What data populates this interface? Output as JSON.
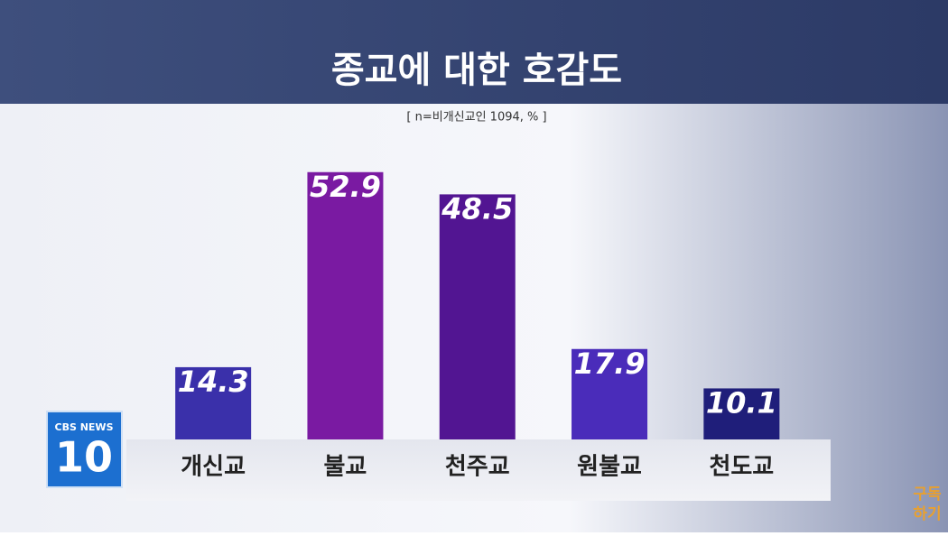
{
  "chart_data": {
    "type": "bar",
    "title": "종교에 대한 호감도",
    "subtitle": "[ n=비개신교인 1094, % ]",
    "categories": [
      "개신교",
      "불교",
      "천주교",
      "원불교",
      "천도교"
    ],
    "values": [
      14.3,
      52.9,
      48.5,
      17.9,
      10.1
    ],
    "colors": [
      "#3a30aa",
      "#7a1aa2",
      "#521592",
      "#4a2cba",
      "#1f1e7a"
    ],
    "ylim": [
      0,
      60
    ]
  },
  "logo": {
    "brand": "CBS NEWS",
    "number": "10"
  },
  "subscribe": [
    "구독",
    "하기"
  ]
}
